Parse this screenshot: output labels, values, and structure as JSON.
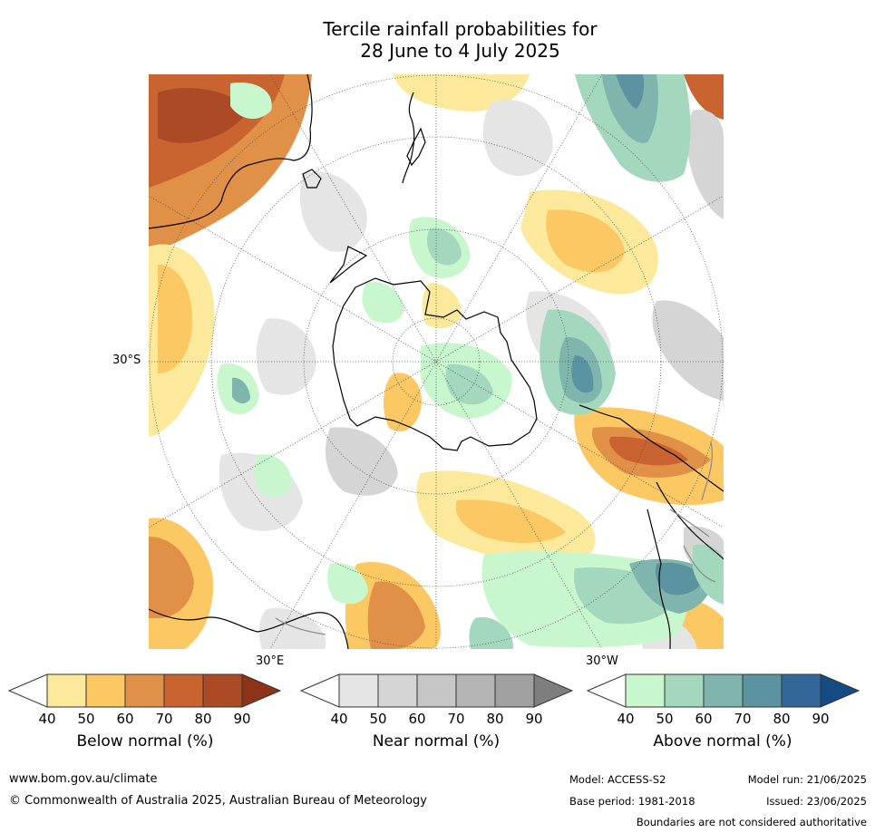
{
  "title": {
    "line1": "Tercile rainfall probabilities for",
    "line2": "28 June to 4 July 2025"
  },
  "map": {
    "projection": "south-polar-stereographic",
    "lat_label": "30°S",
    "lon_labels": [
      "30°E",
      "30°W"
    ]
  },
  "colorbars": [
    {
      "name": "Below normal (%)",
      "ticks": [
        "40",
        "50",
        "60",
        "70",
        "80",
        "90"
      ],
      "colors": [
        "#ffffff",
        "#fde99b",
        "#fbc864",
        "#e09147",
        "#c9632f",
        "#ad4a26",
        "#8c3318"
      ]
    },
    {
      "name": "Near normal (%)",
      "ticks": [
        "40",
        "50",
        "60",
        "70",
        "80",
        "90"
      ],
      "colors": [
        "#ffffff",
        "#e5e5e5",
        "#d5d5d5",
        "#c6c6c6",
        "#b4b4b4",
        "#a0a0a0",
        "#7e7e7e"
      ]
    },
    {
      "name": "Above normal (%)",
      "ticks": [
        "40",
        "50",
        "60",
        "70",
        "80",
        "90"
      ],
      "colors": [
        "#ffffff",
        "#c9f7cd",
        "#a4d8be",
        "#7fb5ad",
        "#5b93a0",
        "#33679a",
        "#154b84"
      ]
    }
  ],
  "footer": {
    "website": "www.bom.gov.au/climate",
    "copyright": "© Commonwealth of Australia 2025, Australian Bureau of Meteorology",
    "model": "Model: ACCESS-S2",
    "base_period": "Base period: 1981-2018",
    "model_run": "Model run: 21/06/2025",
    "issued": "Issued: 23/06/2025",
    "disclaimer": "Boundaries are not considered authoritative"
  }
}
